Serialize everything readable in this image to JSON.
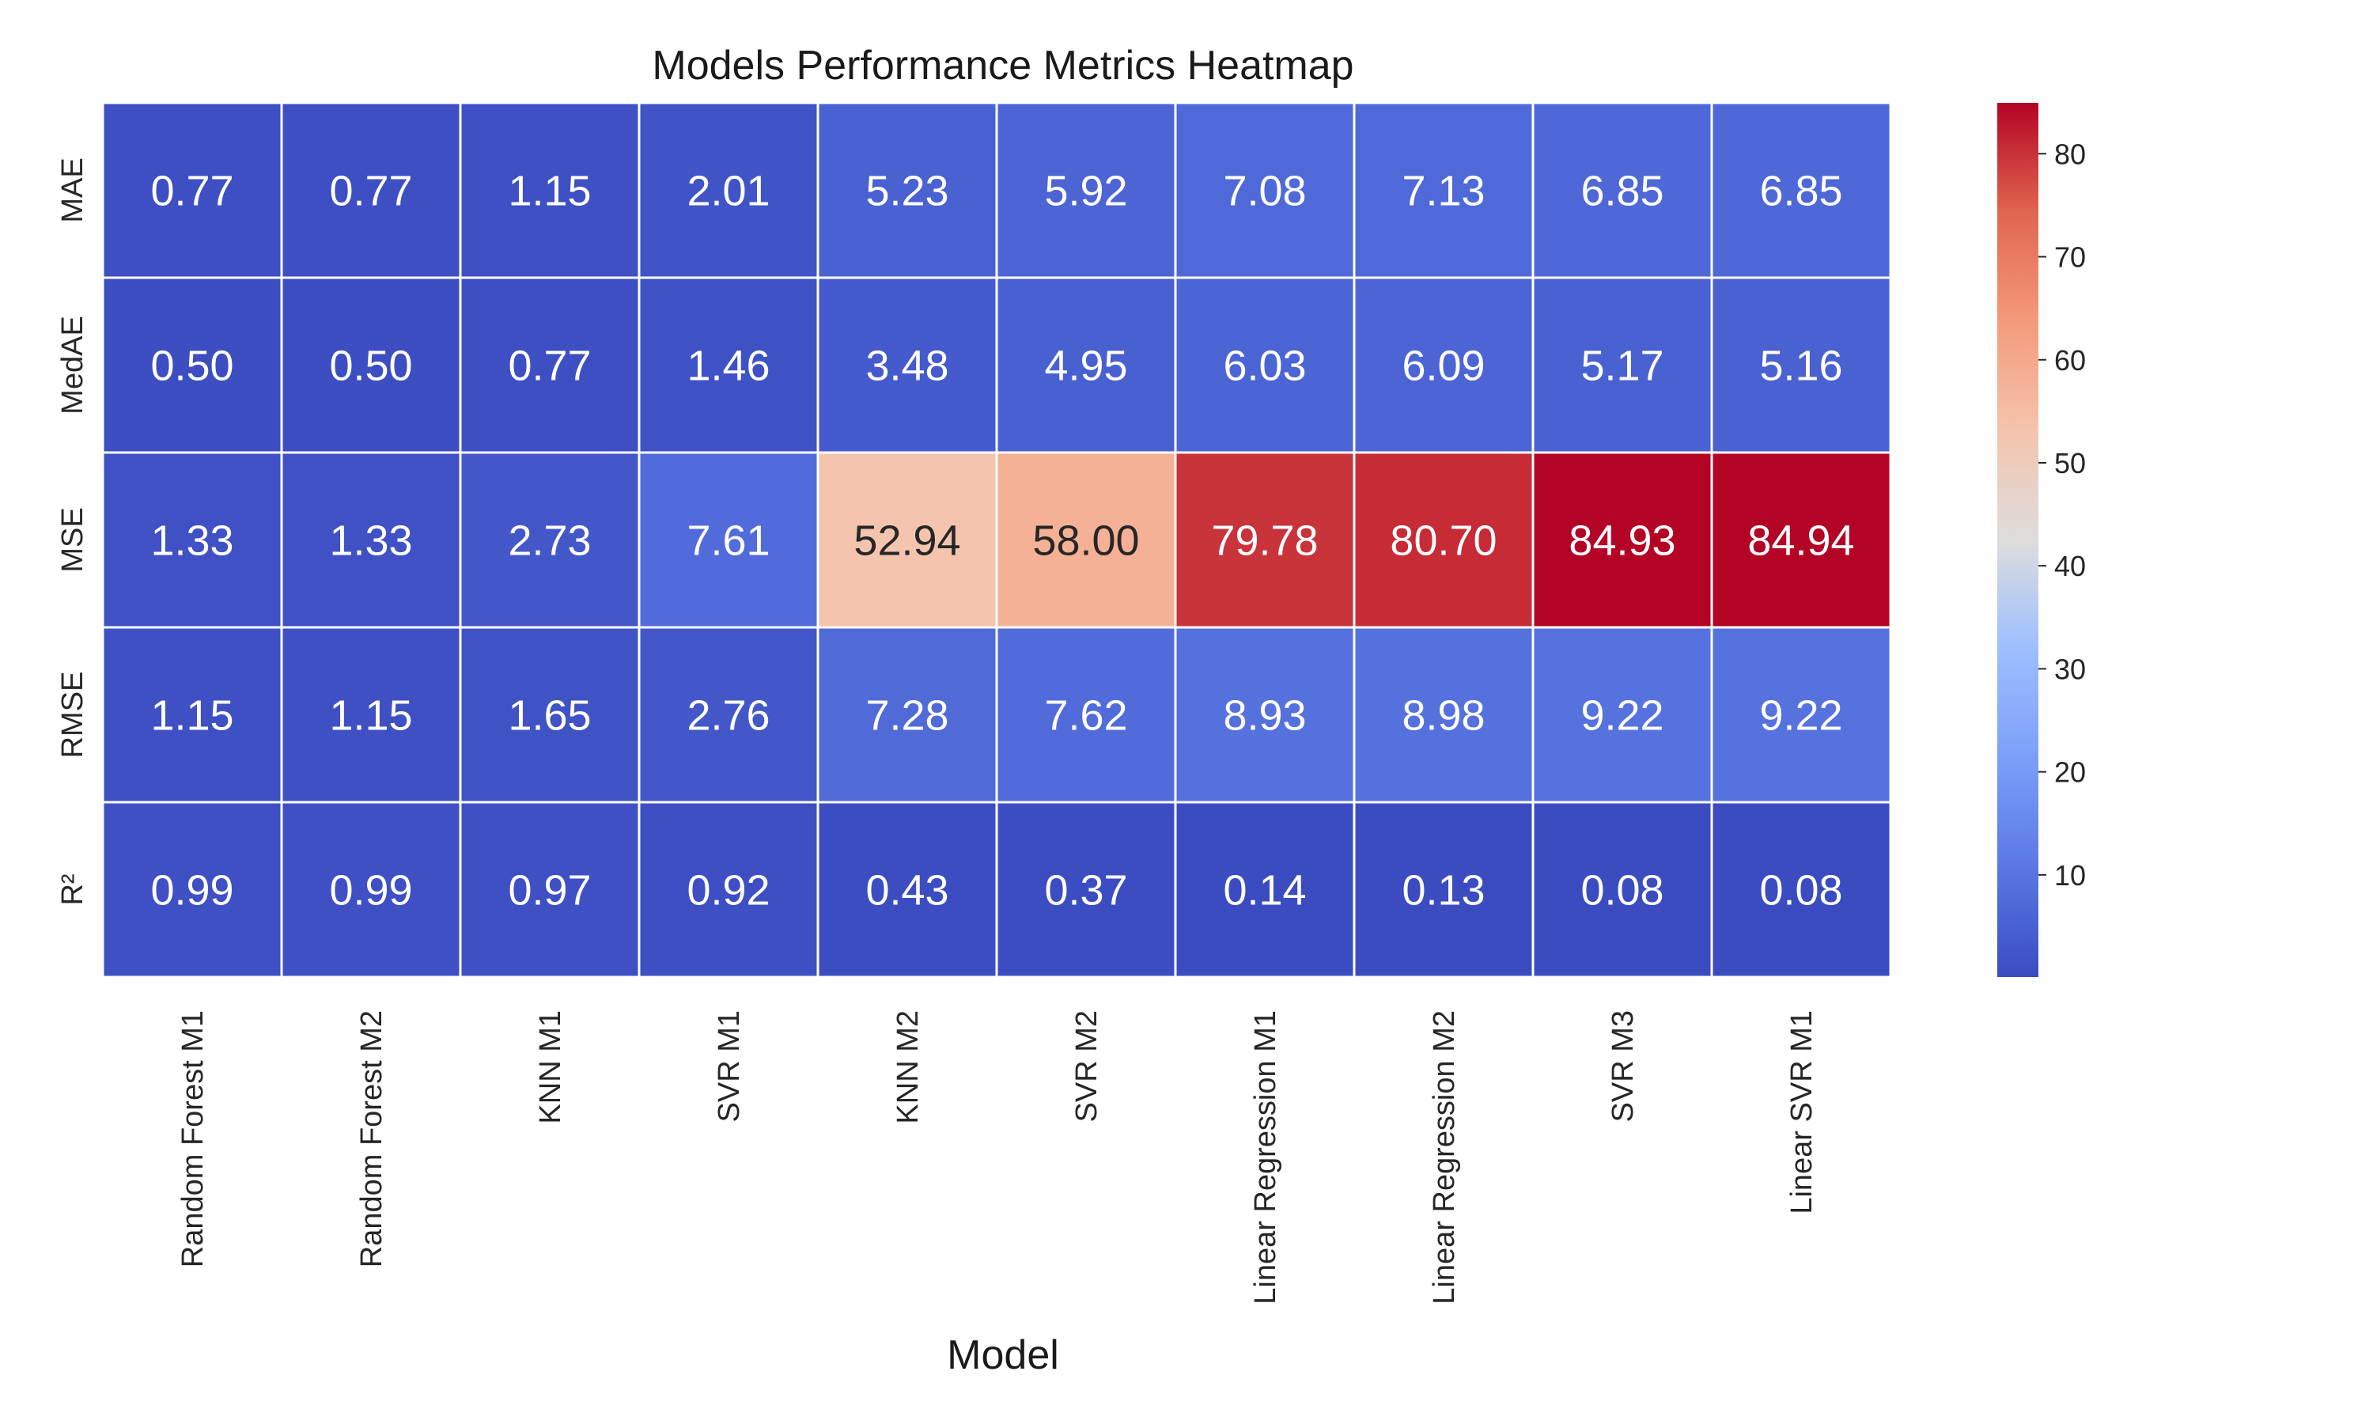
{
  "chart_data": {
    "type": "heatmap",
    "title": "Models Performance Metrics Heatmap",
    "xlabel": "Model",
    "ylabel": "",
    "x_categories": [
      "Random Forest M1",
      "Random Forest M2",
      "KNN M1",
      "SVR M1",
      "KNN M2",
      "SVR M2",
      "Linear Regression M1",
      "Linear Regression M2",
      "SVR M3",
      "Linear SVR M1"
    ],
    "y_categories": [
      "MAE",
      "MedAE",
      "MSE",
      "RMSE",
      "R²"
    ],
    "values": [
      [
        0.77,
        0.77,
        1.15,
        2.01,
        5.23,
        5.92,
        7.08,
        7.13,
        6.85,
        6.85
      ],
      [
        0.5,
        0.5,
        0.77,
        1.46,
        3.48,
        4.95,
        6.03,
        6.09,
        5.17,
        5.16
      ],
      [
        1.33,
        1.33,
        2.73,
        7.61,
        52.94,
        58.0,
        79.78,
        80.7,
        84.93,
        84.94
      ],
      [
        1.15,
        1.15,
        1.65,
        2.76,
        7.28,
        7.62,
        8.93,
        8.98,
        9.22,
        9.22
      ],
      [
        0.99,
        0.99,
        0.97,
        0.92,
        0.43,
        0.37,
        0.14,
        0.13,
        0.08,
        0.08
      ]
    ],
    "colormap": "coolwarm",
    "colorbar": {
      "range": [
        0.08,
        84.94
      ],
      "ticks": [
        10,
        20,
        30,
        40,
        50,
        60,
        70,
        80
      ]
    },
    "grid": true
  }
}
